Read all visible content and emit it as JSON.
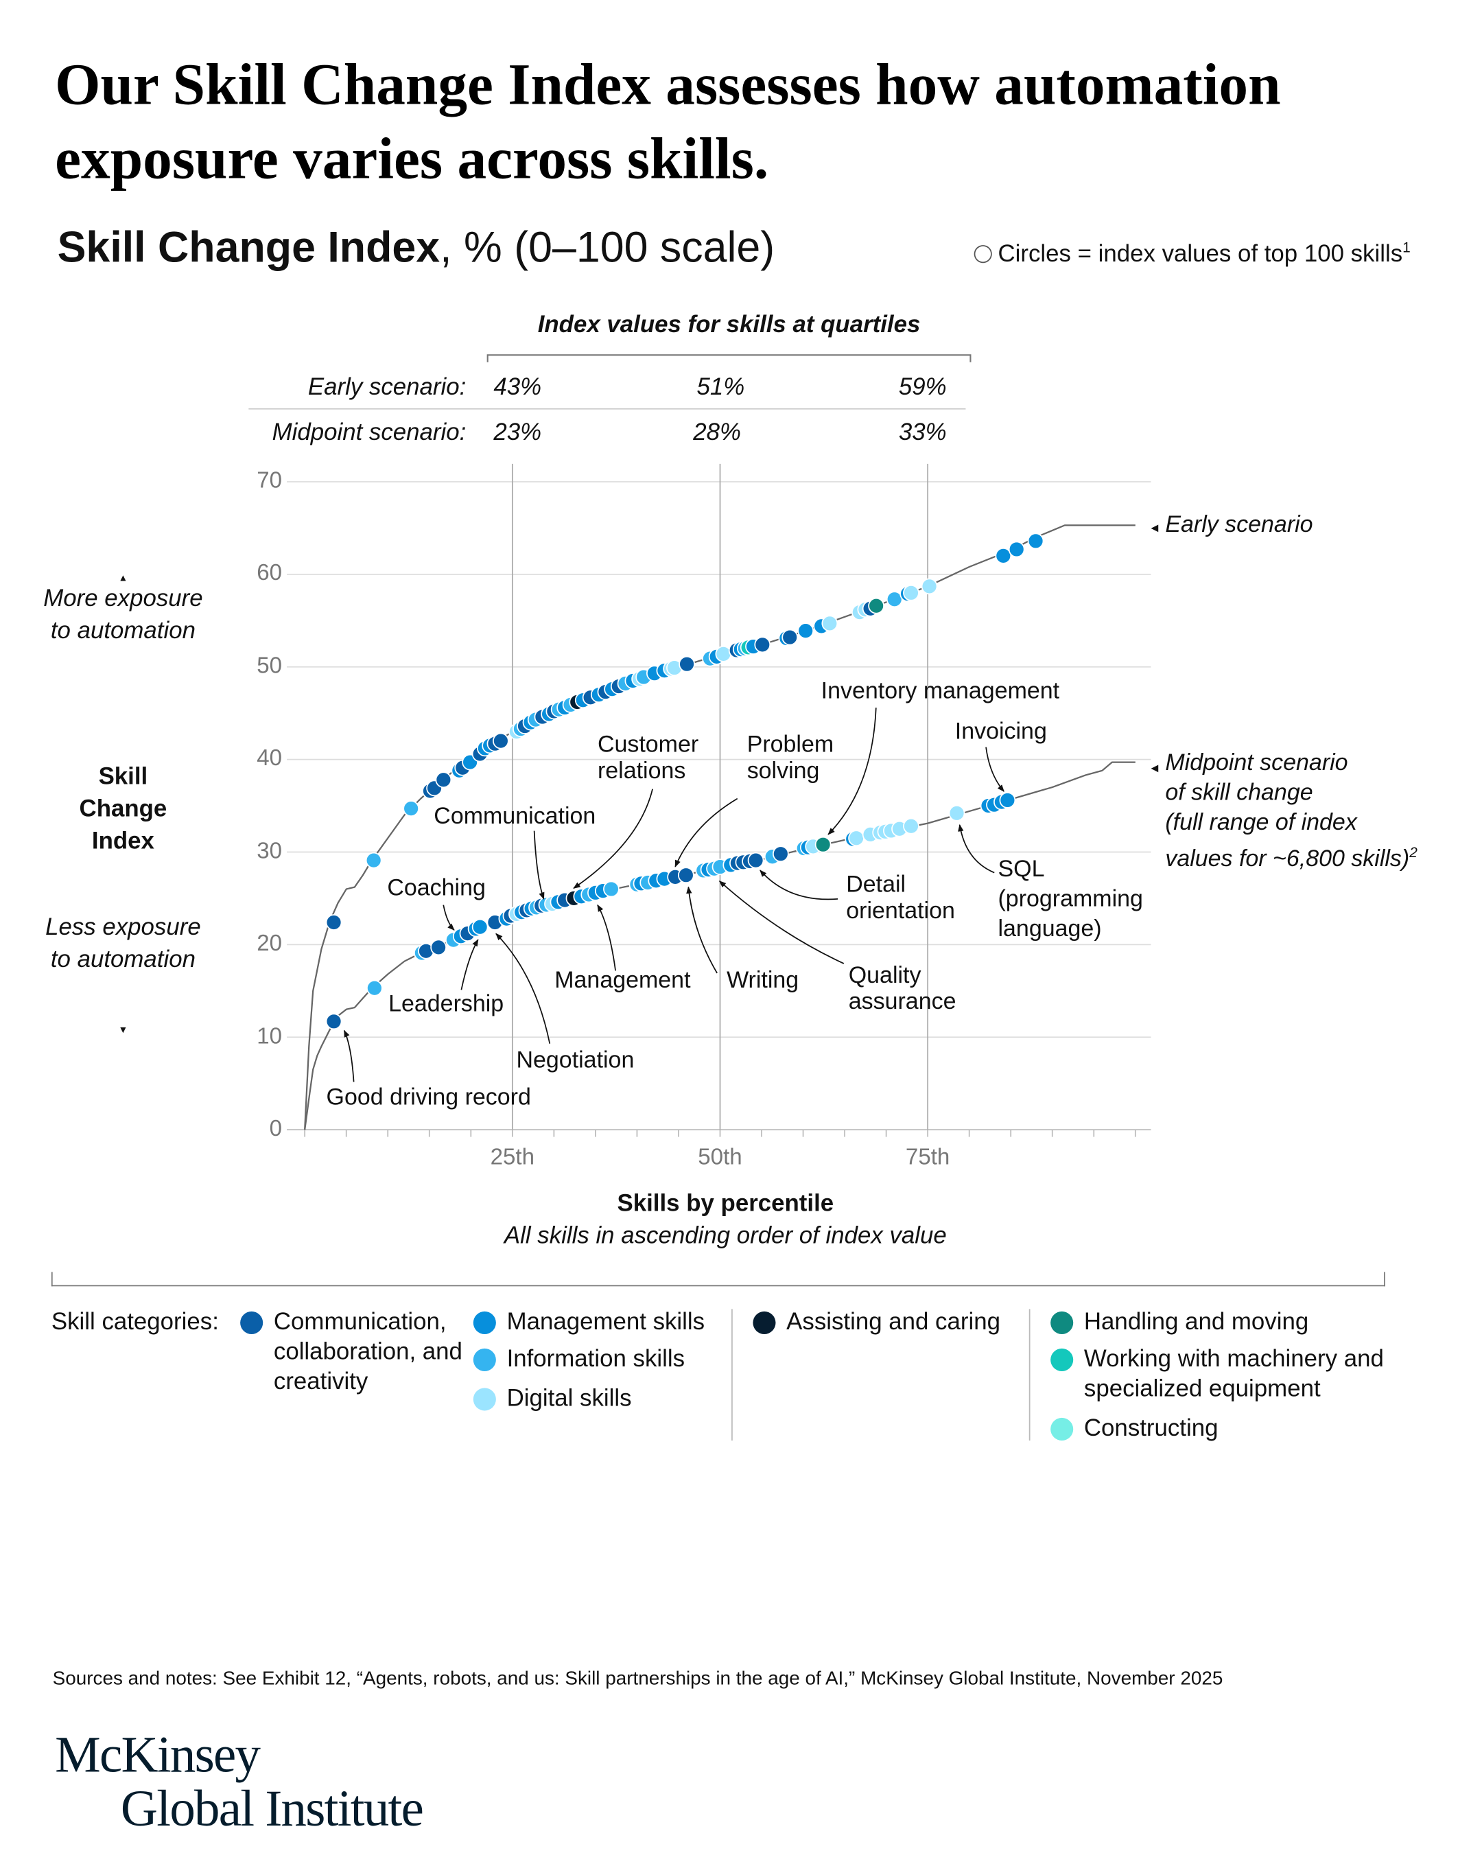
{
  "title": "Our Skill Change Index assesses how automation exposure varies across skills.",
  "subtitle": {
    "bold": "Skill Change Index",
    "rest": ", % (0–100 scale)"
  },
  "circle_note": "Circles = index values of top 100 skills",
  "circle_note_footnote": "1",
  "quartile_table": {
    "heading": "Index values for skills at quartiles",
    "rows": [
      {
        "label": "Early scenario:",
        "values": [
          "43%",
          "51%",
          "59%"
        ]
      },
      {
        "label": "Midpoint scenario:",
        "values": [
          "23%",
          "28%",
          "33%"
        ]
      }
    ]
  },
  "left_annotations": {
    "more": "More exposure to automation",
    "axis_title": "Skill Change Index",
    "less": "Less exposure to automation"
  },
  "colors": {
    "communication": "#0a5fa8",
    "management": "#078fdc",
    "information": "#35b4f0",
    "digital": "#9be4ff",
    "assisting": "#061d30",
    "handling": "#0f8a80",
    "machinery": "#14c8bc",
    "constructing": "#76eee6",
    "curve": "#666666"
  },
  "legend": {
    "label": "Skill categories:",
    "items": [
      {
        "key": "communication",
        "label": "Communication, collaboration, and creativity"
      },
      {
        "key": "management",
        "label": "Management skills"
      },
      {
        "key": "information",
        "label": "Information skills"
      },
      {
        "key": "digital",
        "label": "Digital skills"
      },
      {
        "key": "assisting",
        "label": "Assisting and caring"
      },
      {
        "key": "handling",
        "label": "Handling and moving"
      },
      {
        "key": "machinery",
        "label": "Working with machinery and specialized equipment"
      },
      {
        "key": "constructing",
        "label": "Constructing"
      }
    ]
  },
  "chart_data": {
    "type": "line",
    "xlabel": "Skills by percentile",
    "xlabel_sub": "All skills in ascending order of index value",
    "xlim": [
      0,
      100
    ],
    "ylim": [
      0,
      70
    ],
    "yticks": [
      "0",
      "10",
      "20",
      "30",
      "40",
      "50",
      "60",
      "70"
    ],
    "xticks": [
      {
        "x": 25,
        "label": "25th"
      },
      {
        "x": 50,
        "label": "50th"
      },
      {
        "x": 75,
        "label": "75th"
      }
    ],
    "grid": true,
    "series": [
      {
        "name": "Early scenario",
        "curve": [
          [
            0,
            0
          ],
          [
            0.5,
            9
          ],
          [
            1,
            15
          ],
          [
            2,
            19.5
          ],
          [
            3,
            22.5
          ],
          [
            4,
            24.5
          ],
          [
            5,
            26
          ],
          [
            6,
            26.2
          ],
          [
            7,
            27.5
          ],
          [
            8,
            29
          ],
          [
            10,
            31.5
          ],
          [
            12,
            34
          ],
          [
            14,
            35.8
          ],
          [
            16,
            37.4
          ],
          [
            18,
            38.8
          ],
          [
            20,
            40
          ],
          [
            22,
            41.3
          ],
          [
            25,
            43
          ],
          [
            30,
            45.2
          ],
          [
            35,
            46.9
          ],
          [
            40,
            48.7
          ],
          [
            45,
            50
          ],
          [
            50,
            51.3
          ],
          [
            55,
            52.4
          ],
          [
            60,
            53.8
          ],
          [
            65,
            55.4
          ],
          [
            70,
            57
          ],
          [
            75,
            58.7
          ],
          [
            80,
            60.8
          ],
          [
            85,
            62.6
          ],
          [
            88,
            64
          ],
          [
            91.5,
            65.3
          ],
          [
            100,
            65.3
          ]
        ],
        "dots": [
          [
            3.5,
            22.4,
            "communication"
          ],
          [
            8.3,
            29.1,
            "information"
          ],
          [
            12.8,
            34.7,
            "information"
          ],
          [
            15.1,
            36.6,
            "communication"
          ],
          [
            15.6,
            36.9,
            "communication"
          ],
          [
            16.7,
            37.8,
            "communication"
          ],
          [
            18.6,
            38.8,
            "management"
          ],
          [
            19,
            39.1,
            "communication"
          ],
          [
            19.9,
            39.7,
            "management"
          ],
          [
            21.1,
            40.6,
            "communication"
          ],
          [
            21.7,
            41.2,
            "management"
          ],
          [
            22.3,
            41.5,
            "management"
          ],
          [
            22.9,
            41.7,
            "communication"
          ],
          [
            23.6,
            42,
            "communication"
          ],
          [
            25.5,
            43,
            "digital"
          ],
          [
            26,
            43.3,
            "information"
          ],
          [
            26.5,
            43.6,
            "communication"
          ],
          [
            27.2,
            44,
            "management"
          ],
          [
            27.8,
            44.3,
            "information"
          ],
          [
            28.6,
            44.6,
            "communication"
          ],
          [
            29.4,
            44.9,
            "management"
          ],
          [
            30,
            45.2,
            "communication"
          ],
          [
            30.6,
            45.4,
            "information"
          ],
          [
            31.3,
            45.6,
            "management"
          ],
          [
            32,
            45.9,
            "information"
          ],
          [
            32.8,
            46.2,
            "assisting"
          ],
          [
            33.5,
            46.4,
            "management"
          ],
          [
            34.4,
            46.7,
            "communication"
          ],
          [
            35.4,
            47,
            "management"
          ],
          [
            36.2,
            47.3,
            "communication"
          ],
          [
            37,
            47.6,
            "management"
          ],
          [
            37.8,
            47.9,
            "communication"
          ],
          [
            38.6,
            48.2,
            "information"
          ],
          [
            39.5,
            48.5,
            "management"
          ],
          [
            40.3,
            48.7,
            "digital"
          ],
          [
            40.8,
            48.9,
            "information"
          ],
          [
            42.1,
            49.3,
            "management"
          ],
          [
            43.3,
            49.6,
            "management"
          ],
          [
            44.1,
            49.8,
            "digital"
          ],
          [
            44.5,
            49.9,
            "digital"
          ],
          [
            46,
            50.3,
            "communication"
          ],
          [
            48.8,
            50.9,
            "information"
          ],
          [
            49.6,
            51.1,
            "management"
          ],
          [
            50.4,
            51.4,
            "digital"
          ],
          [
            52,
            51.8,
            "communication"
          ],
          [
            52.5,
            51.9,
            "management"
          ],
          [
            53,
            52,
            "information"
          ],
          [
            53.4,
            52.1,
            "machinery"
          ],
          [
            54,
            52.2,
            "management"
          ],
          [
            55.1,
            52.4,
            "communication"
          ],
          [
            58,
            53.1,
            "management"
          ],
          [
            58.4,
            53.2,
            "communication"
          ],
          [
            60.3,
            53.9,
            "management"
          ],
          [
            62.2,
            54.4,
            "management"
          ],
          [
            63.2,
            54.7,
            "digital"
          ],
          [
            66.8,
            55.9,
            "digital"
          ],
          [
            67.5,
            56.2,
            "digital"
          ],
          [
            68.1,
            56.3,
            "communication"
          ],
          [
            68.8,
            56.6,
            "handling"
          ],
          [
            71,
            57.3,
            "information"
          ],
          [
            72.6,
            57.9,
            "management"
          ],
          [
            73,
            58,
            "digital"
          ],
          [
            75.2,
            58.7,
            "digital"
          ],
          [
            84.1,
            62,
            "management"
          ],
          [
            85.7,
            62.7,
            "management"
          ],
          [
            88,
            63.6,
            "management"
          ]
        ]
      },
      {
        "name": "Midpoint scenario of skill change (full range of index values for ~6,800 skills)",
        "curve": [
          [
            0,
            0
          ],
          [
            0.6,
            4
          ],
          [
            1,
            6.5
          ],
          [
            1.5,
            8
          ],
          [
            2,
            9
          ],
          [
            3,
            10.8
          ],
          [
            4,
            12.3
          ],
          [
            5,
            13
          ],
          [
            6,
            13.2
          ],
          [
            7,
            14.2
          ],
          [
            8,
            15.2
          ],
          [
            10,
            16.8
          ],
          [
            12,
            18.2
          ],
          [
            14,
            19.1
          ],
          [
            16,
            19.8
          ],
          [
            18,
            20.6
          ],
          [
            20,
            21.5
          ],
          [
            22.5,
            22.3
          ],
          [
            25,
            23.1
          ],
          [
            30,
            24.5
          ],
          [
            35,
            25.6
          ],
          [
            40,
            26.5
          ],
          [
            45,
            27.4
          ],
          [
            50,
            28.3
          ],
          [
            55,
            29.2
          ],
          [
            60,
            30.3
          ],
          [
            65,
            31.3
          ],
          [
            70,
            32.2
          ],
          [
            75,
            33.1
          ],
          [
            80,
            34.4
          ],
          [
            85,
            35.7
          ],
          [
            90,
            37
          ],
          [
            94,
            38.3
          ],
          [
            96,
            38.8
          ],
          [
            97.2,
            39.7
          ],
          [
            100,
            39.7
          ]
        ],
        "dots": [
          [
            3.5,
            11.7,
            "communication"
          ],
          [
            8.4,
            15.3,
            "information"
          ],
          [
            14.1,
            19.1,
            "information"
          ],
          [
            14.6,
            19.3,
            "communication"
          ],
          [
            16.1,
            19.7,
            "communication"
          ],
          [
            17.9,
            20.5,
            "information"
          ],
          [
            18.8,
            20.9,
            "management"
          ],
          [
            19.6,
            21.2,
            "communication"
          ],
          [
            20.6,
            21.7,
            "management"
          ],
          [
            21.1,
            21.9,
            "management"
          ],
          [
            22.9,
            22.4,
            "communication"
          ],
          [
            24.3,
            22.8,
            "management"
          ],
          [
            24.8,
            23.1,
            "communication"
          ],
          [
            25.5,
            23.3,
            "digital"
          ],
          [
            26.1,
            23.5,
            "management"
          ],
          [
            26.7,
            23.7,
            "communication"
          ],
          [
            27.3,
            23.9,
            "management"
          ],
          [
            27.9,
            24,
            "information"
          ],
          [
            28.5,
            24.2,
            "communication"
          ],
          [
            29.1,
            24.3,
            "information"
          ],
          [
            29.8,
            24.4,
            "digital"
          ],
          [
            30.5,
            24.6,
            "management"
          ],
          [
            31.3,
            24.8,
            "communication"
          ],
          [
            32.4,
            25,
            "assisting"
          ],
          [
            33.3,
            25.2,
            "management"
          ],
          [
            34.2,
            25.4,
            "information"
          ],
          [
            35,
            25.6,
            "management"
          ],
          [
            35.9,
            25.8,
            "management"
          ],
          [
            36.9,
            26,
            "information"
          ],
          [
            40,
            26.5,
            "information"
          ],
          [
            40.5,
            26.6,
            "management"
          ],
          [
            41.3,
            26.7,
            "information"
          ],
          [
            42.3,
            26.9,
            "management"
          ],
          [
            43.3,
            27.1,
            "management"
          ],
          [
            44.6,
            27.3,
            "communication"
          ],
          [
            45.9,
            27.5,
            "communication"
          ],
          [
            48,
            28,
            "information"
          ],
          [
            48.6,
            28.1,
            "management"
          ],
          [
            49.3,
            28.2,
            "information"
          ],
          [
            50,
            28.4,
            "information"
          ],
          [
            51.3,
            28.6,
            "management"
          ],
          [
            52.1,
            28.8,
            "communication"
          ],
          [
            52.8,
            28.9,
            "communication"
          ],
          [
            53.6,
            29,
            "communication"
          ],
          [
            54.3,
            29.1,
            "communication"
          ],
          [
            56.3,
            29.5,
            "information"
          ],
          [
            57.3,
            29.8,
            "communication"
          ],
          [
            60.1,
            30.4,
            "information"
          ],
          [
            60.6,
            30.5,
            "management"
          ],
          [
            61.2,
            30.6,
            "digital"
          ],
          [
            62.4,
            30.8,
            "handling"
          ],
          [
            66,
            31.4,
            "management"
          ],
          [
            66.4,
            31.5,
            "digital"
          ],
          [
            68.1,
            31.9,
            "digital"
          ],
          [
            69.3,
            32.1,
            "digital"
          ],
          [
            69.9,
            32.2,
            "digital"
          ],
          [
            70.6,
            32.3,
            "digital"
          ],
          [
            71.6,
            32.5,
            "digital"
          ],
          [
            73,
            32.8,
            "digital"
          ],
          [
            78.5,
            34.2,
            "digital"
          ],
          [
            82.3,
            35,
            "management"
          ],
          [
            83,
            35.1,
            "management"
          ],
          [
            83.9,
            35.4,
            "management"
          ],
          [
            84.6,
            35.6,
            "management"
          ]
        ]
      }
    ],
    "series_labels": {
      "early": "Early scenario",
      "midpoint_lines": [
        "Midpoint scenario",
        "of skill change",
        "(full range of index",
        "values for ~6,800 skills)"
      ],
      "midpoint_footnote": "2"
    },
    "annotations": [
      {
        "label": "Good driving record"
      },
      {
        "label": "Negotiation"
      },
      {
        "label": "Leadership"
      },
      {
        "label": "Coaching"
      },
      {
        "label": "Communication"
      },
      {
        "label": "Customer relations"
      },
      {
        "label": "Management"
      },
      {
        "label": "Writing"
      },
      {
        "label": "Problem solving"
      },
      {
        "label": "Quality assurance"
      },
      {
        "label": "Detail orientation"
      },
      {
        "label": "Inventory management"
      },
      {
        "label": "Invoicing"
      },
      {
        "label": "SQL (programming language)"
      }
    ]
  },
  "sources": "Sources and notes: See Exhibit 12, “Agents, robots, and us: Skill partnerships in the age of AI,” McKinsey Global Institute, November 2025",
  "logo": {
    "line1": "McKinsey",
    "line2": "Global Institute"
  }
}
